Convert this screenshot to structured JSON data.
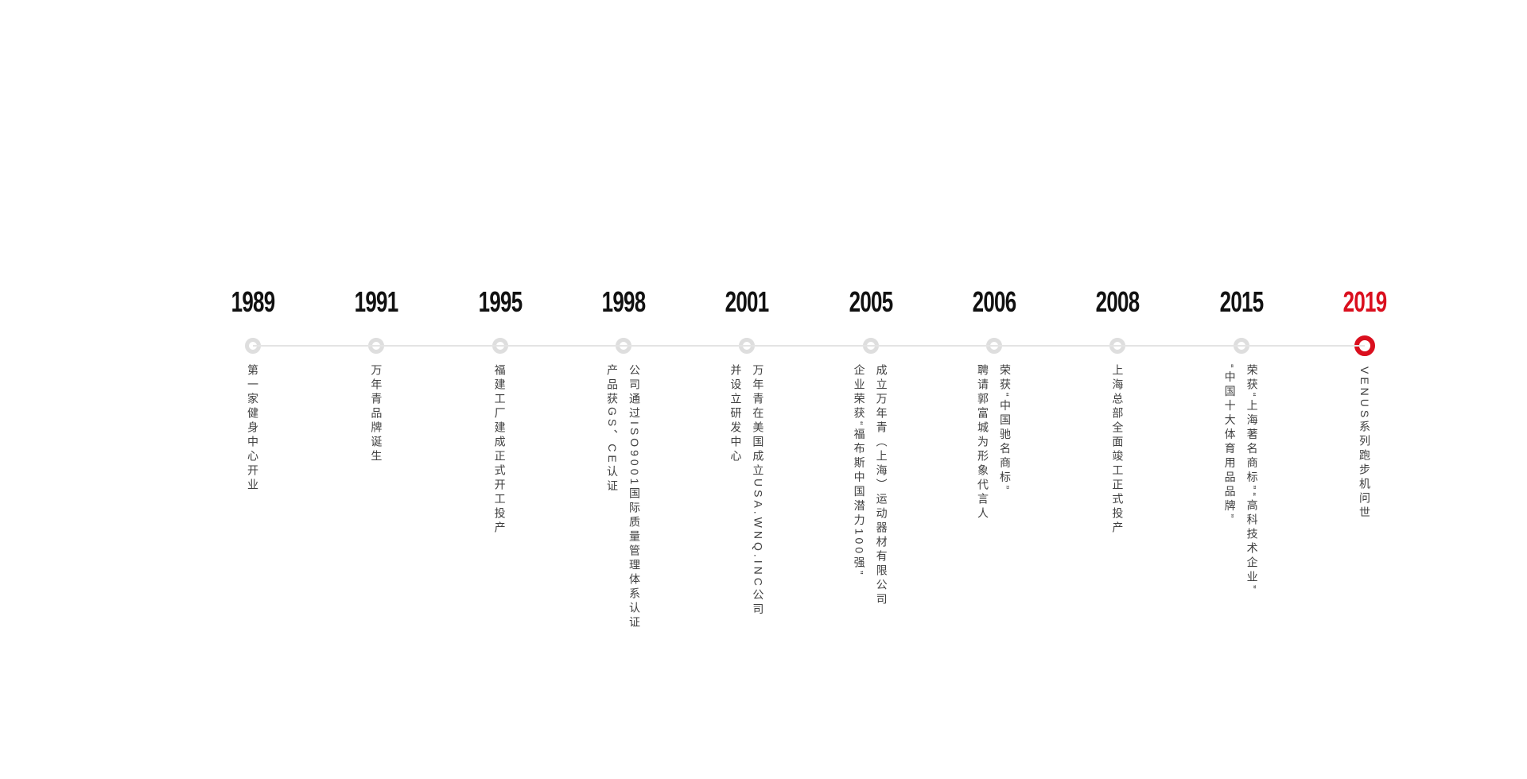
{
  "palette": {
    "accent_red": "#da0f1e",
    "year_black": "#111111",
    "line_grey": "#e4e4e4",
    "dot_ring_grey": "#dedede",
    "text_grey": "#404040",
    "background": "#ffffff"
  },
  "timeline": {
    "items": [
      {
        "year": "1989",
        "highlight": false,
        "lines": [
          "第一家健身中心开业"
        ]
      },
      {
        "year": "1991",
        "highlight": false,
        "lines": [
          "万年青品牌诞生"
        ]
      },
      {
        "year": "1995",
        "highlight": false,
        "lines": [
          "福建工厂建成正式开工投产"
        ]
      },
      {
        "year": "1998",
        "highlight": false,
        "lines": [
          "公司通过ISO9001国际质量管理体系认证",
          "产品获GS、CE认证"
        ]
      },
      {
        "year": "2001",
        "highlight": false,
        "lines": [
          "万年青在美国成立USA.WNQ.INC公司",
          "并设立研发中心"
        ]
      },
      {
        "year": "2005",
        "highlight": false,
        "lines": [
          "成立万年青（上海）运动器材有限公司",
          "企业荣获“福布斯中国潜力100强”"
        ]
      },
      {
        "year": "2006",
        "highlight": false,
        "lines": [
          "荣获“中国驰名商标”",
          "聘请郭富城为形象代言人"
        ]
      },
      {
        "year": "2008",
        "highlight": false,
        "lines": [
          "上海总部全面竣工正式投产"
        ]
      },
      {
        "year": "2015",
        "highlight": false,
        "lines": [
          "荣获“上海著名商标”“高科技术企业”",
          "“中国十大体育用品品牌”"
        ]
      },
      {
        "year": "2019",
        "highlight": true,
        "lines": [
          "VENUS系列跑步机问世"
        ]
      }
    ]
  }
}
